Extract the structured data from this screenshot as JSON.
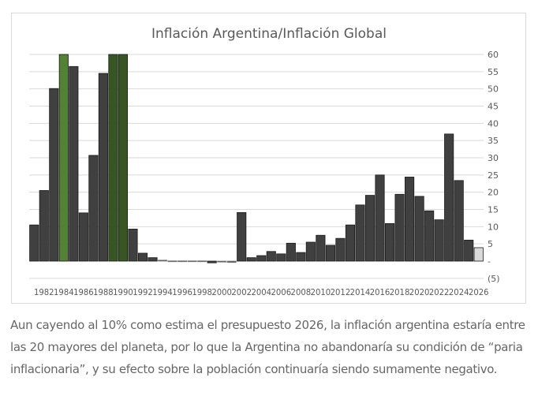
{
  "chart_data": {
    "type": "bar",
    "title": "Inflación Argentina/Inflación Global",
    "xlabel": "",
    "ylabel": "",
    "ylim": [
      -5,
      60
    ],
    "y_ticks": [
      {
        "value": 60,
        "label": "60"
      },
      {
        "value": 55,
        "label": "55"
      },
      {
        "value": 50,
        "label": "50"
      },
      {
        "value": 45,
        "label": "45"
      },
      {
        "value": 40,
        "label": "40"
      },
      {
        "value": 35,
        "label": "35"
      },
      {
        "value": 30,
        "label": "30"
      },
      {
        "value": 25,
        "label": "25"
      },
      {
        "value": 20,
        "label": "20"
      },
      {
        "value": 15,
        "label": "15"
      },
      {
        "value": 10,
        "label": "10"
      },
      {
        "value": 5,
        "label": "5"
      },
      {
        "value": 0,
        "label": "-"
      },
      {
        "value": -5,
        "label": "(5)"
      }
    ],
    "y_axis_side": "right",
    "grid": true,
    "x_tick_labels": [
      "1982",
      "1984",
      "1986",
      "1988",
      "1990",
      "1992",
      "1994",
      "1996",
      "1998",
      "2000",
      "2002",
      "2004",
      "2006",
      "2008",
      "2010",
      "2012",
      "2014",
      "2016",
      "2018",
      "2020",
      "2022",
      "2024",
      "2026"
    ],
    "categories": [
      "1981",
      "1982",
      "1983",
      "1984",
      "1985",
      "1986",
      "1987",
      "1988",
      "1989",
      "1990",
      "1991",
      "1992",
      "1993",
      "1994",
      "1995",
      "1996",
      "1997",
      "1998",
      "1999",
      "2000",
      "2001",
      "2002",
      "2003",
      "2004",
      "2005",
      "2006",
      "2007",
      "2008",
      "2009",
      "2010",
      "2011",
      "2012",
      "2013",
      "2014",
      "2015",
      "2016",
      "2017",
      "2018",
      "2019",
      "2020",
      "2021",
      "2022",
      "2023",
      "2024",
      "2025",
      "2026"
    ],
    "values": [
      10.5,
      20.5,
      50.1,
      60,
      56.5,
      14.0,
      30.7,
      54.5,
      60,
      60,
      9.3,
      2.3,
      1.0,
      0.3,
      0.1,
      0.1,
      0.1,
      0.1,
      -0.5,
      -0.3,
      -0.4,
      14.1,
      1.0,
      1.6,
      2.8,
      2.1,
      5.2,
      2.5,
      5.5,
      7.5,
      4.6,
      6.6,
      10.5,
      16.3,
      19.1,
      25.0,
      10.9,
      19.4,
      24.4,
      18.8,
      14.6,
      12.0,
      36.9,
      23.4,
      6.1,
      3.9
    ],
    "clipped_above_axis": [
      "1984",
      "1989",
      "1990"
    ],
    "colors": {
      "default": "#404040",
      "clipped_1984": "#548235",
      "clipped_1989_1990": "#375623",
      "projection_2026": "#d9d9d9",
      "bar_border": "#1a1a1a",
      "grid": "#d9d9d9",
      "tick_text": "#595959",
      "title_text": "#595959"
    },
    "legend": "none"
  },
  "caption": {
    "text": "Aun cayendo al 10% como estima el presupuesto 2026, la inflación argentina estaría entre las 20 mayores del planeta, por lo que la Argentina no abandonaría su condición de “paria inflacionaria”, y su efecto sobre la población continuaría siendo sumamente negativo."
  }
}
